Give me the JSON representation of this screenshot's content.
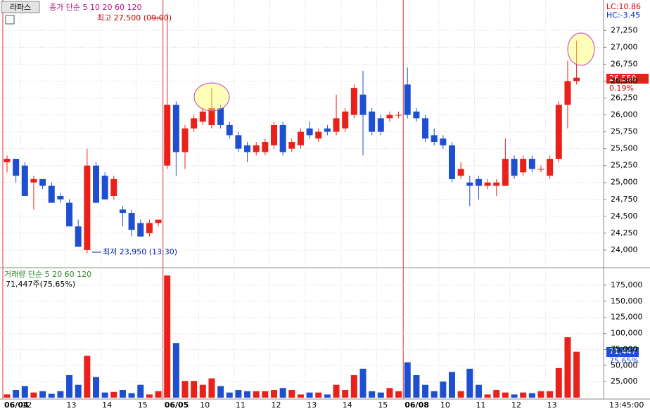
{
  "header": {
    "stock": "라파스",
    "ma_label": "종가 단순 5 10 20 60 120",
    "high_note": "최고 27,500 (09:00)",
    "low_note": "최저 23,950 (13:30)",
    "lc": "LC:10.86",
    "hc": "HC:-3.45",
    "current_price": "26,550",
    "change": "0.19%",
    "volume_label": "거래량 단순 5 20 60 120",
    "volume_note": "71,447주(75.65%)",
    "current_volume": "71,447",
    "volume_ratio": "75.65%",
    "time": "13:45:00"
  },
  "chart_data": [
    {
      "type": "candlestick",
      "up_color": "#e8221b",
      "down_color": "#1f4fd1",
      "grid": true,
      "open": [
        25300,
        25350,
        25250,
        25000,
        25050,
        24950,
        24800,
        24700,
        24350,
        24000,
        25250,
        25100,
        24800,
        24600,
        24550,
        24400,
        24250,
        24400,
        25250,
        26150,
        25450,
        25800,
        25900,
        25850,
        26100,
        25850,
        25700,
        25550,
        25450,
        25450,
        25550,
        25850,
        25500,
        25550,
        25800,
        25650,
        25800,
        25750,
        25800,
        26000,
        26300,
        26050,
        25950,
        25950,
        26000,
        26450,
        26050,
        25950,
        25700,
        25650,
        25550,
        25100,
        25000,
        25050,
        24950,
        24950,
        24950,
        25350,
        25150,
        25350,
        25200,
        25100,
        25350,
        26150,
        26500
      ],
      "high": [
        25400,
        25350,
        25300,
        25100,
        25050,
        25000,
        24850,
        24750,
        24450,
        25500,
        25300,
        25150,
        25100,
        24650,
        24600,
        24450,
        24450,
        24450,
        27500,
        26200,
        25850,
        26000,
        26100,
        26400,
        26150,
        25900,
        25750,
        25600,
        25600,
        25650,
        25900,
        25900,
        25650,
        25800,
        25900,
        25800,
        25850,
        26300,
        26100,
        26450,
        26650,
        26100,
        26000,
        26050,
        26050,
        26700,
        26100,
        26000,
        25800,
        25700,
        25600,
        25300,
        25100,
        25100,
        25050,
        25050,
        25650,
        25400,
        25400,
        25400,
        25250,
        25400,
        26200,
        26800,
        27100
      ],
      "low": [
        25150,
        25000,
        24800,
        24600,
        24900,
        24700,
        24700,
        24350,
        24050,
        23950,
        24700,
        24750,
        24750,
        24350,
        24200,
        24200,
        24200,
        24350,
        25200,
        25100,
        25200,
        25750,
        25850,
        25800,
        25800,
        25650,
        25450,
        25300,
        25400,
        25400,
        25500,
        25400,
        25450,
        25500,
        25650,
        25600,
        25700,
        25700,
        25750,
        25950,
        25400,
        25700,
        25700,
        25900,
        25950,
        25950,
        25900,
        25600,
        25550,
        25500,
        25000,
        25050,
        24650,
        24750,
        24900,
        24800,
        24950,
        25050,
        25100,
        25150,
        25150,
        25050,
        25300,
        25800,
        26450
      ],
      "close": [
        25350,
        25100,
        24800,
        25050,
        24950,
        24700,
        24750,
        24350,
        24050,
        25250,
        24700,
        24750,
        25050,
        24550,
        24300,
        24200,
        24400,
        24450,
        26150,
        25450,
        25800,
        25950,
        26050,
        26100,
        25850,
        25700,
        25500,
        25450,
        25550,
        25600,
        25850,
        25450,
        25600,
        25750,
        25700,
        25750,
        25750,
        25950,
        26050,
        26400,
        26000,
        25750,
        25750,
        26000,
        26000,
        26000,
        25950,
        25650,
        25600,
        25550,
        25050,
        25200,
        24950,
        24950,
        25000,
        25000,
        25350,
        25100,
        25350,
        25200,
        25200,
        25350,
        26150,
        26500,
        26550
      ],
      "ylim": [
        23750,
        27700
      ],
      "yticks": [
        {
          "value": 24000,
          "label": "24,000"
        },
        {
          "value": 24250,
          "label": "24,250"
        },
        {
          "value": 24500,
          "label": "24,500"
        },
        {
          "value": 24750,
          "label": "24,750"
        },
        {
          "value": 25000,
          "label": "25,000"
        },
        {
          "value": 25250,
          "label": "25,250"
        },
        {
          "value": 25500,
          "label": "25,500"
        },
        {
          "value": 25750,
          "label": "25,750"
        },
        {
          "value": 26000,
          "label": "26,000"
        },
        {
          "value": 26250,
          "label": "26,250"
        },
        {
          "value": 26500,
          "label": "26,500"
        },
        {
          "value": 26750,
          "label": "26,750"
        },
        {
          "value": 27000,
          "label": "27,000"
        },
        {
          "value": 27250,
          "label": "27,250"
        }
      ],
      "xticks": [
        {
          "value": 0,
          "label": "06/04"
        },
        {
          "value": 2,
          "label": "12"
        },
        {
          "value": 7,
          "label": "13"
        },
        {
          "value": 11,
          "label": "14"
        },
        {
          "value": 15,
          "label": "15"
        },
        {
          "value": 18,
          "label": "06/05"
        },
        {
          "value": 22,
          "label": "10"
        },
        {
          "value": 26,
          "label": "11"
        },
        {
          "value": 30,
          "label": "12"
        },
        {
          "value": 34,
          "label": "13"
        },
        {
          "value": 38,
          "label": "14"
        },
        {
          "value": 42,
          "label": "15"
        },
        {
          "value": 45,
          "label": "06/08"
        },
        {
          "value": 49,
          "label": "10"
        },
        {
          "value": 53,
          "label": "11"
        },
        {
          "value": 57,
          "label": "12"
        },
        {
          "value": 61,
          "label": "13"
        }
      ]
    },
    {
      "type": "volume",
      "grid": true,
      "values": [
        5000,
        12000,
        18000,
        8000,
        10000,
        6000,
        10000,
        35000,
        20000,
        65000,
        32000,
        8000,
        9000,
        12000,
        7000,
        20000,
        5000,
        10000,
        190000,
        85000,
        26000,
        26000,
        20000,
        30000,
        18000,
        8000,
        12000,
        10000,
        10000,
        10000,
        12000,
        15000,
        12000,
        5000,
        8000,
        8000,
        5000,
        20000,
        12000,
        35000,
        45000,
        10000,
        8000,
        15000,
        10000,
        55000,
        35000,
        20000,
        10000,
        25000,
        40000,
        10000,
        45000,
        20000,
        5000,
        12000,
        8000,
        5000,
        8000,
        7000,
        10000,
        10000,
        46000,
        94000,
        71447
      ],
      "ylim": [
        0,
        200000
      ],
      "yticks": [
        {
          "value": 25000,
          "label": "25,000"
        },
        {
          "value": 50000,
          "label": "50,000"
        },
        {
          "value": 75000,
          "label": "75,000"
        },
        {
          "value": 100000,
          "label": "100,000"
        },
        {
          "value": 125000,
          "label": "125,000"
        },
        {
          "value": 150000,
          "label": "150,000"
        },
        {
          "value": 175000,
          "label": "175,000"
        }
      ]
    }
  ]
}
